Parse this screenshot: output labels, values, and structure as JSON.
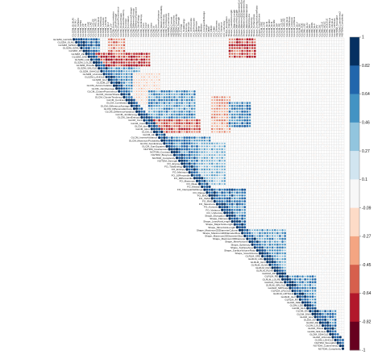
{
  "chart_data": {
    "type": "heatmap",
    "variant": "upper-triangle correlation matrix with circle markers",
    "variables": [
      "GLSZM_GLNUN",
      "GLSZM_GLNU",
      "GLSZM_SZNUN",
      "GLSZM_SZNU",
      "GLSZM_ZP",
      "GLSZM_ZE",
      "GLSZM_SAE",
      "GLSZM_LAE",
      "GLSZM_LGLZE",
      "GLSZM_HGLZE",
      "GLSZM_SALGLE",
      "GLSZM_SAHGLE",
      "GLSZM_LALGLE",
      "GLSZM_LAHGLE",
      "GLSZM_GLV",
      "GLSZM_ZV",
      "GLCM_Autocorrelation",
      "GLCM_JointAverage",
      "GLCM_ClusterProminence",
      "GLCM_ClusterShade",
      "GLCM_ClusterTendency",
      "GLCM_Contrast",
      "GLCM_Correlation",
      "GLCM_DifferenceAverage",
      "GLCM_DifferenceEntropy",
      "GLCM_DifferenceVariance",
      "GLCM_JointEnergy",
      "GLCM_JointEntropy",
      "GLCM_Imc1",
      "GLCM_Imc2",
      "GLCM_Idm",
      "GLCM_Idmn",
      "GLCM_Id",
      "GLCM_Idn",
      "GLCM_InverseVariance",
      "GLCM_MaximumProbability",
      "GLCM_SumEntropy",
      "GLCM_SumSquares",
      "NGTDM_Coarseness",
      "NGTDM_Contrast",
      "NGTDM_Busyness",
      "NGTDM_Complexity",
      "NGTDM_Strength",
      "FO_Energy",
      "FO_TotalEnergy",
      "FO_Entropy",
      "FO_Minimum",
      "FO_10Percentile",
      "FO_90Percentile",
      "FO_Maximum",
      "FO_Mean",
      "FO_Median",
      "FO_InterquartileRange",
      "FO_Range",
      "FO_MAD",
      "FO_rMAD",
      "FO_RMS",
      "FO_Skewness",
      "FO_Kurtosis",
      "FO_Variance",
      "FO_Uniformity",
      "Shape_Elongation",
      "Shape_Flatness",
      "Shape_LeastAxisLength",
      "Shape_MajorAxisLength",
      "Shape_MinorAxisLength",
      "Shape_Maximum2DDiameterColumn",
      "Shape_Maximum2DDiameterRow",
      "Shape_Maximum2DDiameterSlice",
      "Shape_Maximum3DDiameter",
      "Shape_MeshVolume",
      "Shape_Sphericity",
      "Shape_SurfaceArea",
      "Shape_SurfaceVolumeRatio",
      "Shape_VoxelVolume",
      "GLRLM_SRE",
      "GLRLM_LRE",
      "GLRLM_GLN",
      "GLRLM_GLNN",
      "GLRLM_RLN",
      "GLRLM_RLNN",
      "GLRLM_RP",
      "GLRLM_RE",
      "GLRLM_LGLRE",
      "GLRLM_HGLRE",
      "GLRLM_SRLGLE",
      "GLRLM_SRHGLE",
      "GLRLM_LRLGLE",
      "GLRLM_LRHGLE",
      "GLRLM_GLV",
      "GLRLM_RV",
      "GLDM_SDE",
      "GLDM_LDE",
      "GLDM_GLN",
      "GLDM_DN",
      "GLDM_DNN",
      "GLDM_GLV",
      "GLDM_DV",
      "GLDM_DE",
      "GLDM_LGLE",
      "GLDM_HGLE",
      "GLDM_SDLGLE",
      "GLDM_SDHGLE",
      "GLDM_LDLGLE",
      "GLDM_LDHGLE",
      "NGTDM_Strength2",
      "NGTDM_Coarseness2",
      "NGTDM_Complexity"
    ],
    "value_range": [
      -1,
      1
    ],
    "colorbar": {
      "ticks": [
        "1",
        "0.82",
        "0.64",
        "0.46",
        "0.27",
        "0.1",
        "-0.09",
        "-0.27",
        "-0.45",
        "-0.64",
        "-0.82",
        "-1"
      ],
      "colors": [
        "#053061",
        "#2166ac",
        "#4393c3",
        "#92c5de",
        "#d1e5f0",
        "#f7f7f7",
        "#fddbc7",
        "#f4a582",
        "#d6604d",
        "#b2182b",
        "#67001f",
        "#67001f"
      ]
    },
    "color_scale": {
      "negative": "#b2182b",
      "neutral": "#f7f7f7",
      "positive": "#2166ac",
      "strong_positive": "#053061",
      "strong_negative": "#67001f"
    },
    "blocks": [
      {
        "rows": [
          0,
          10
        ],
        "cols": [
          0,
          10
        ],
        "r": 0.85
      },
      {
        "rows": [
          0,
          6
        ],
        "cols": [
          14,
          20
        ],
        "r": -0.65
      },
      {
        "rows": [
          0,
          6
        ],
        "cols": [
          62,
          72
        ],
        "r": -0.8
      },
      {
        "rows": [
          5,
          9
        ],
        "cols": [
          8,
          30
        ],
        "r": -0.85
      },
      {
        "rows": [
          10,
          18
        ],
        "cols": [
          10,
          26
        ],
        "r": 0.7
      },
      {
        "rows": [
          12,
          22
        ],
        "cols": [
          24,
          34
        ],
        "r": -0.35
      },
      {
        "rows": [
          18,
          30
        ],
        "cols": [
          30,
          48
        ],
        "r": 0.75
      },
      {
        "rows": [
          28,
          32
        ],
        "cols": [
          26,
          50
        ],
        "r": -0.75
      },
      {
        "rows": [
          20,
          32
        ],
        "cols": [
          55,
          62
        ],
        "r": -0.55
      },
      {
        "rows": [
          22,
          30
        ],
        "cols": [
          62,
          70
        ],
        "r": 0.8
      },
      {
        "rows": [
          34,
          52
        ],
        "cols": [
          34,
          54
        ],
        "r": 0.8
      },
      {
        "rows": [
          36,
          50
        ],
        "cols": [
          50,
          60
        ],
        "r": 0.6
      },
      {
        "rows": [
          52,
          66
        ],
        "cols": [
          52,
          68
        ],
        "r": 0.85
      },
      {
        "rows": [
          66,
          84
        ],
        "cols": [
          66,
          84
        ],
        "r": 0.7
      },
      {
        "rows": [
          82,
          96
        ],
        "cols": [
          82,
          96
        ],
        "r": 0.75
      },
      {
        "rows": [
          94,
          104
        ],
        "cols": [
          94,
          104
        ],
        "r": 0.8
      }
    ]
  }
}
